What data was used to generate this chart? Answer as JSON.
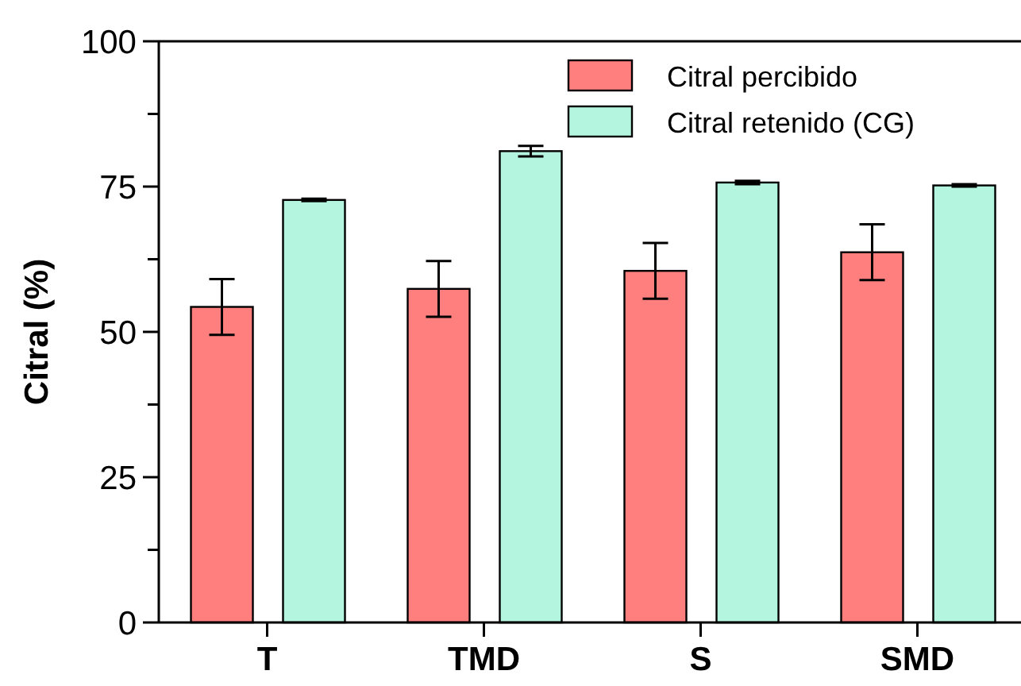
{
  "chart_data": {
    "type": "bar",
    "ylabel": "Citral (%)",
    "categories": [
      "T",
      "TMD",
      "S",
      "SMD"
    ],
    "series": [
      {
        "name": "Citral percibido",
        "color": "#ff7f7f",
        "values": [
          54.3,
          57.4,
          60.5,
          63.7
        ],
        "errors": [
          4.8,
          4.8,
          4.8,
          4.8
        ]
      },
      {
        "name": "Citral retenido (CG)",
        "color": "#b3f5df",
        "values": [
          72.7,
          81.1,
          75.7,
          75.2
        ],
        "errors": [
          0.2,
          0.9,
          0.3,
          0.2
        ]
      }
    ],
    "ylim": [
      0,
      100
    ],
    "yticks": [
      0,
      {
        "value": 12.5,
        "label": null
      },
      25,
      {
        "value": 37.5,
        "label": null
      },
      50,
      {
        "value": 62.5,
        "label": null
      },
      75,
      {
        "value": 87.5,
        "label": null
      },
      100
    ],
    "grid": false,
    "legend": "top right"
  }
}
